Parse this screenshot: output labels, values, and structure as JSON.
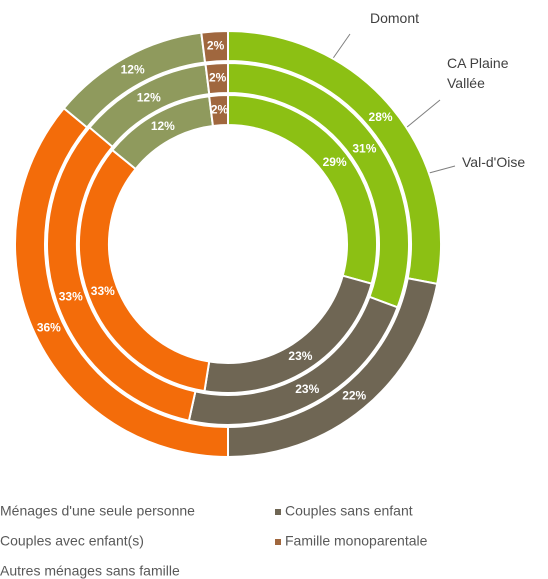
{
  "chart_data": {
    "type": "donut",
    "categories": [
      "Couples avec enfant(s)",
      "Couples sans enfant",
      "Ménages d'une seule personne",
      "Autres ménages sans famille",
      "Famille monoparentale"
    ],
    "colors": [
      "#8cc014",
      "#6f6654",
      "#f36c0a",
      "#8f9a5d",
      "#a0673e"
    ],
    "series": [
      {
        "name": "Domont",
        "values": [
          29,
          23,
          33,
          12,
          2
        ],
        "value_labels": [
          "29%",
          "23%",
          "33%",
          "12%",
          "2%"
        ]
      },
      {
        "name": "CA Plaine Vallée",
        "values": [
          31,
          23,
          33,
          12,
          2
        ],
        "value_labels": [
          "31%",
          "23%",
          "33%",
          "12%",
          "2%"
        ]
      },
      {
        "name": "Val-d'Oise",
        "values": [
          28,
          22,
          36,
          12,
          2
        ],
        "value_labels": [
          "28%",
          "22%",
          "36%",
          "12%",
          "2%"
        ]
      }
    ],
    "legend": true
  }
}
